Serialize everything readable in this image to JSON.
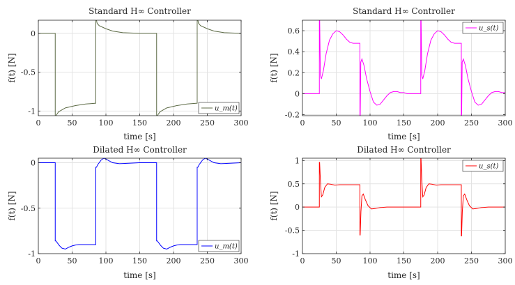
{
  "chart_data": [
    {
      "type": "line",
      "title": "Standard H∞ Controller",
      "xlabel": "time [s]",
      "ylabel": "f(t) [N]",
      "xlim": [
        0,
        300
      ],
      "ylim": [
        -1.06,
        0.17
      ],
      "xticks": [
        0,
        50,
        100,
        150,
        200,
        250,
        300
      ],
      "yticks": [
        -1,
        -0.5,
        0
      ],
      "yticklabels": [
        "-1",
        "-0.5",
        "0"
      ],
      "grid": true,
      "legend": "bottom-right",
      "series": [
        {
          "name": "u_m(t)",
          "color": "#5c6a45",
          "x": [
            0,
            25,
            25,
            26,
            30,
            40,
            55,
            70,
            84.9,
            84.9,
            86,
            87,
            90,
            100,
            110,
            125,
            150,
            174.9,
            175,
            175,
            176,
            180,
            190,
            205,
            220,
            234.9,
            235,
            235,
            236,
            237,
            240,
            250,
            260,
            275,
            300
          ],
          "y": [
            0,
            0,
            -1.06,
            -1.06,
            -1.01,
            -0.96,
            -0.93,
            -0.91,
            -0.9,
            0.17,
            0.17,
            0.13,
            0.1,
            0.06,
            0.03,
            0.01,
            0.0,
            0.0,
            0.0,
            -1.06,
            -1.06,
            -1.01,
            -0.96,
            -0.93,
            -0.91,
            -0.9,
            -0.9,
            0.17,
            0.17,
            0.13,
            0.1,
            0.06,
            0.03,
            0.01,
            0.0
          ]
        }
      ]
    },
    {
      "type": "line",
      "title": "Standard H∞ Controller",
      "xlabel": "time [s]",
      "ylabel": "f(t) [N]",
      "xlim": [
        0,
        300
      ],
      "ylim": [
        -0.21,
        0.7
      ],
      "xticks": [
        0,
        50,
        100,
        150,
        200,
        250,
        300
      ],
      "yticks": [
        -0.2,
        0,
        0.2,
        0.4,
        0.6
      ],
      "yticklabels": [
        "-0.2",
        "0",
        "0.2",
        "0.4",
        "0.6"
      ],
      "grid": true,
      "legend": "top-right",
      "series": [
        {
          "name": "u_s(t)",
          "color": "#ff00ff",
          "x": [
            0,
            25,
            25,
            25.5,
            26.5,
            28,
            31,
            35,
            40,
            45,
            50,
            55,
            60,
            65,
            70,
            75,
            80,
            84.9,
            85,
            85,
            85.5,
            86.3,
            88,
            91,
            95,
            100,
            105,
            110,
            115,
            120,
            125,
            130,
            135,
            140,
            145,
            150,
            155,
            160,
            165,
            170,
            174.9,
            175,
            175,
            175.5,
            176.5,
            178,
            181,
            185,
            190,
            195,
            200,
            205,
            210,
            215,
            220,
            225,
            230,
            234.9,
            235,
            235,
            235.5,
            236.3,
            238,
            241,
            245,
            250,
            255,
            260,
            265,
            270,
            275,
            280,
            285,
            290,
            295,
            300
          ],
          "y": [
            0,
            0,
            0.7,
            0.7,
            0.18,
            0.14,
            0.22,
            0.38,
            0.51,
            0.57,
            0.6,
            0.59,
            0.56,
            0.52,
            0.49,
            0.48,
            0.48,
            0.48,
            0.48,
            -0.21,
            -0.21,
            0.3,
            0.33,
            0.27,
            0.14,
            0.02,
            -0.08,
            -0.11,
            -0.1,
            -0.06,
            -0.02,
            0.01,
            0.02,
            0.02,
            0.01,
            0.01,
            0.0,
            0.0,
            0.0,
            0.0,
            0.0,
            0.0,
            0.7,
            0.7,
            0.18,
            0.14,
            0.22,
            0.38,
            0.51,
            0.57,
            0.6,
            0.59,
            0.56,
            0.52,
            0.49,
            0.48,
            0.48,
            0.48,
            0.48,
            -0.21,
            -0.21,
            0.3,
            0.33,
            0.27,
            0.14,
            0.02,
            -0.08,
            -0.11,
            -0.1,
            -0.06,
            -0.02,
            0.01,
            0.02,
            0.02,
            0.01,
            0.01
          ]
        }
      ]
    },
    {
      "type": "line",
      "title": "Dilated H∞ Controller",
      "xlabel": "time [s]",
      "ylabel": "f(t) [N]",
      "xlim": [
        0,
        300
      ],
      "ylim": [
        -1,
        0.05
      ],
      "xticks": [
        0,
        50,
        100,
        150,
        200,
        250,
        300
      ],
      "yticks": [
        -1,
        -0.5,
        0
      ],
      "yticklabels": [
        "-1",
        "-0.5",
        "0"
      ],
      "grid": true,
      "legend": "bottom-right",
      "series": [
        {
          "name": "u_m(t)",
          "color": "#0000ff",
          "x": [
            0,
            25,
            25,
            26,
            28,
            31,
            35,
            40,
            45,
            50,
            55,
            60,
            70,
            84.9,
            85,
            85,
            86,
            88,
            90,
            93,
            97,
            100,
            105,
            110,
            120,
            150,
            175,
            175,
            176,
            178,
            181,
            185,
            190,
            195,
            200,
            205,
            210,
            220,
            234.9,
            235,
            235,
            236,
            238,
            240,
            243,
            247,
            250,
            255,
            260,
            270,
            300
          ],
          "y": [
            0,
            0,
            -0.86,
            -0.86,
            -0.88,
            -0.91,
            -0.94,
            -0.95,
            -0.93,
            -0.915,
            -0.905,
            -0.9,
            -0.9,
            -0.9,
            -0.9,
            -0.05,
            -0.05,
            -0.02,
            0.0,
            0.03,
            0.05,
            0.04,
            0.02,
            0.0,
            -0.01,
            0.0,
            0.0,
            -0.86,
            -0.86,
            -0.88,
            -0.91,
            -0.94,
            -0.95,
            -0.93,
            -0.915,
            -0.905,
            -0.9,
            -0.9,
            -0.9,
            -0.9,
            -0.05,
            -0.05,
            -0.02,
            0.0,
            0.03,
            0.05,
            0.04,
            0.02,
            0.0,
            -0.01,
            0.0
          ]
        }
      ]
    },
    {
      "type": "line",
      "title": "Dilated H∞ Controller",
      "xlabel": "time [s]",
      "ylabel": "f(t) [N]",
      "xlim": [
        0,
        300
      ],
      "ylim": [
        -1,
        1.05
      ],
      "xticks": [
        0,
        50,
        100,
        150,
        200,
        250,
        300
      ],
      "yticks": [
        -1,
        -0.5,
        0,
        0.5,
        1
      ],
      "yticklabels": [
        "-1",
        "-0.5",
        "0",
        "0.5",
        "1"
      ],
      "grid": true,
      "legend": "top-right",
      "series": [
        {
          "name": "u_s(t)",
          "color": "#ff0000",
          "x": [
            0,
            25,
            25,
            25.4,
            26.5,
            28,
            30,
            33,
            37,
            42,
            48,
            55,
            65,
            75,
            84.9,
            85,
            85,
            85.4,
            86.5,
            88,
            90,
            93,
            97,
            102,
            108,
            115,
            125,
            140,
            160,
            174.9,
            175,
            175,
            175.4,
            176.5,
            178,
            180,
            183,
            187,
            192,
            198,
            205,
            215,
            225,
            234.9,
            235,
            235,
            235.4,
            236.5,
            238,
            240,
            243,
            247,
            252,
            258,
            265,
            275,
            290,
            300
          ],
          "y": [
            0,
            0,
            0.96,
            0.96,
            0.6,
            0.22,
            0.26,
            0.42,
            0.5,
            0.49,
            0.47,
            0.48,
            0.48,
            0.48,
            0.48,
            0.48,
            -0.6,
            -0.6,
            -0.1,
            0.24,
            0.28,
            0.16,
            0.03,
            -0.04,
            -0.03,
            -0.01,
            0.0,
            0.0,
            0.0,
            0.0,
            0.0,
            1.05,
            1.05,
            0.6,
            0.22,
            0.26,
            0.42,
            0.5,
            0.49,
            0.47,
            0.48,
            0.48,
            0.48,
            0.48,
            0.48,
            -0.62,
            -0.62,
            -0.1,
            0.24,
            0.28,
            0.16,
            0.03,
            -0.04,
            -0.03,
            -0.01,
            0.0,
            0.0,
            0.0
          ]
        }
      ]
    }
  ]
}
